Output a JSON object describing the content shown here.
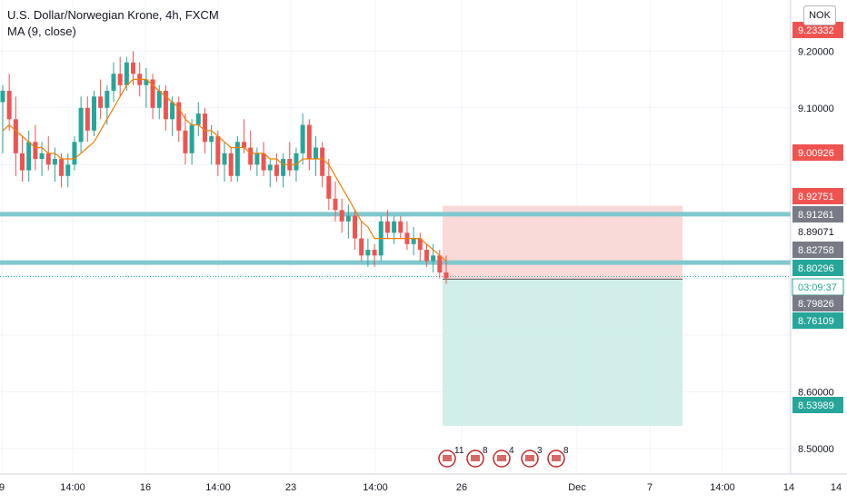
{
  "header": {
    "title": "U.S. Dollar/Norwegian Krone, 4h, FXCM",
    "indicator": "MA (9, close)",
    "currency_button": "NOK"
  },
  "colors": {
    "up": "#26a69a",
    "down": "#ef5350",
    "ma": "#f57c00",
    "grid": "#f0f3fa",
    "hline": "#7fc8ce",
    "stop_zone": "#f9d3d2",
    "target_zone": "#c9ebe8",
    "label_red": "#ef5350",
    "label_green": "#26a69a",
    "label_gray": "#787b86",
    "label_teal_light": "#7fc8ce",
    "axis_text": "#131722"
  },
  "chart_data": {
    "type": "candlestick",
    "symbol": "USDNOK",
    "timeframe": "4h",
    "source": "FXCM",
    "x_ticks": [
      "9",
      "14:00",
      "16",
      "14:00",
      "23",
      "14:00",
      "26",
      "Dec",
      "7",
      "14:00",
      "14",
      "14"
    ],
    "y_ticks": [
      9.2,
      9.1,
      8.6,
      8.5
    ],
    "y_tick_labels": [
      "9.20000",
      "9.10000",
      "8.60000",
      "8.50000"
    ],
    "ylim": [
      8.455,
      9.29
    ],
    "price_labels": [
      {
        "text": "9.23332",
        "value": 9.23332,
        "style": "red"
      },
      {
        "text": "9.00926",
        "value": 9.00926,
        "style": "red"
      },
      {
        "text": "8.92751",
        "value": 8.92751,
        "style": "red"
      },
      {
        "text": "8.91261",
        "value": 8.91261,
        "style": "gray"
      },
      {
        "text": "8.89071",
        "value": 8.89071,
        "style": "plain"
      },
      {
        "text": "8.82758",
        "value": 8.82758,
        "style": "gray"
      },
      {
        "text": "8.80296",
        "value": 8.80296,
        "style": "green"
      },
      {
        "text": "03:09:37",
        "value": 8.77,
        "style": "green-outline"
      },
      {
        "text": "8.79826",
        "value": 8.79826,
        "style": "gray"
      },
      {
        "text": "8.76109",
        "value": 8.76109,
        "style": "green"
      },
      {
        "text": "8.53989",
        "value": 8.53989,
        "style": "green"
      }
    ],
    "horizontal_lines": [
      8.91261,
      8.82758
    ],
    "last_price": 8.80296,
    "position": {
      "entry": 8.79826,
      "stop": 8.92751,
      "target": 8.53989
    },
    "events": [
      "11",
      "8",
      "4",
      "3",
      "8"
    ],
    "candles": [
      [
        9.11,
        9.14,
        9.02,
        9.13
      ],
      [
        9.13,
        9.16,
        9.06,
        9.08
      ],
      [
        9.08,
        9.12,
        8.98,
        9.02
      ],
      [
        9.02,
        9.05,
        8.97,
        8.99
      ],
      [
        8.99,
        9.06,
        8.97,
        9.04
      ],
      [
        9.04,
        9.07,
        8.99,
        9.01
      ],
      [
        9.01,
        9.04,
        8.98,
        9.02
      ],
      [
        9.02,
        9.05,
        8.99,
        9.0
      ],
      [
        9.0,
        9.03,
        8.97,
        9.01
      ],
      [
        9.01,
        9.02,
        8.96,
        8.98
      ],
      [
        8.98,
        9.02,
        8.96,
        9.0
      ],
      [
        9.0,
        9.05,
        8.99,
        9.04
      ],
      [
        9.04,
        9.12,
        9.02,
        9.1
      ],
      [
        9.1,
        9.12,
        9.04,
        9.06
      ],
      [
        9.06,
        9.13,
        9.05,
        9.12
      ],
      [
        9.12,
        9.15,
        9.08,
        9.1
      ],
      [
        9.1,
        9.14,
        9.07,
        9.13
      ],
      [
        9.13,
        9.18,
        9.11,
        9.16
      ],
      [
        9.16,
        9.19,
        9.12,
        9.14
      ],
      [
        9.14,
        9.19,
        9.13,
        9.18
      ],
      [
        9.18,
        9.2,
        9.14,
        9.16
      ],
      [
        9.16,
        9.18,
        9.12,
        9.14
      ],
      [
        9.14,
        9.17,
        9.1,
        9.15
      ],
      [
        9.15,
        9.16,
        9.08,
        9.1
      ],
      [
        9.1,
        9.14,
        9.08,
        9.13
      ],
      [
        9.13,
        9.14,
        9.06,
        9.08
      ],
      [
        9.08,
        9.12,
        9.05,
        9.11
      ],
      [
        9.11,
        9.12,
        9.04,
        9.06
      ],
      [
        9.06,
        9.09,
        9.0,
        9.02
      ],
      [
        9.02,
        9.08,
        9.0,
        9.07
      ],
      [
        9.07,
        9.11,
        9.05,
        9.09
      ],
      [
        9.09,
        9.1,
        9.02,
        9.04
      ],
      [
        9.04,
        9.07,
        9.0,
        9.05
      ],
      [
        9.05,
        9.06,
        8.98,
        9.0
      ],
      [
        9.0,
        9.04,
        8.97,
        9.02
      ],
      [
        9.02,
        9.03,
        8.97,
        8.98
      ],
      [
        8.98,
        9.05,
        8.97,
        9.04
      ],
      [
        9.04,
        9.08,
        9.02,
        9.03
      ],
      [
        9.03,
        9.06,
        8.99,
        9.0
      ],
      [
        9.0,
        9.03,
        8.98,
        9.02
      ],
      [
        9.02,
        9.04,
        8.98,
        8.99
      ],
      [
        8.99,
        9.01,
        8.96,
        9.0
      ],
      [
        9.0,
        9.02,
        8.97,
        8.98
      ],
      [
        8.98,
        9.02,
        8.96,
        9.01
      ],
      [
        9.01,
        9.04,
        8.98,
        8.99
      ],
      [
        8.99,
        9.03,
        8.97,
        9.02
      ],
      [
        9.02,
        9.09,
        9.0,
        9.07
      ],
      [
        9.07,
        9.08,
        8.99,
        9.01
      ],
      [
        9.01,
        9.05,
        8.98,
        9.03
      ],
      [
        9.03,
        9.04,
        8.96,
        8.98
      ],
      [
        8.98,
        9.01,
        8.92,
        8.94
      ],
      [
        8.94,
        8.97,
        8.9,
        8.92
      ],
      [
        8.92,
        8.94,
        8.88,
        8.9
      ],
      [
        8.9,
        8.93,
        8.87,
        8.91
      ],
      [
        8.91,
        8.92,
        8.85,
        8.87
      ],
      [
        8.87,
        8.9,
        8.83,
        8.84
      ],
      [
        8.84,
        8.87,
        8.82,
        8.85
      ],
      [
        8.85,
        8.86,
        8.82,
        8.84
      ],
      [
        8.84,
        8.91,
        8.83,
        8.9
      ],
      [
        8.9,
        8.92,
        8.87,
        8.88
      ],
      [
        8.88,
        8.91,
        8.86,
        8.9
      ],
      [
        8.9,
        8.91,
        8.87,
        8.88
      ],
      [
        8.88,
        8.9,
        8.85,
        8.86
      ],
      [
        8.86,
        8.89,
        8.84,
        8.87
      ],
      [
        8.87,
        8.88,
        8.83,
        8.85
      ],
      [
        8.85,
        8.86,
        8.82,
        8.83
      ],
      [
        8.83,
        8.86,
        8.81,
        8.84
      ],
      [
        8.84,
        8.85,
        8.8,
        8.81
      ],
      [
        8.81,
        8.84,
        8.79,
        8.8
      ]
    ],
    "ma": [
      9.06,
      9.07,
      9.06,
      9.05,
      9.04,
      9.03,
      9.03,
      9.02,
      9.02,
      9.01,
      9.01,
      9.01,
      9.02,
      9.03,
      9.04,
      9.06,
      9.08,
      9.1,
      9.12,
      9.14,
      9.15,
      9.15,
      9.15,
      9.14,
      9.13,
      9.12,
      9.11,
      9.1,
      9.08,
      9.07,
      9.07,
      9.06,
      9.06,
      9.05,
      9.04,
      9.03,
      9.03,
      9.03,
      9.02,
      9.02,
      9.02,
      9.01,
      9.01,
      9.0,
      9.0,
      9.0,
      9.01,
      9.01,
      9.01,
      9.01,
      9.0,
      8.98,
      8.96,
      8.94,
      8.92,
      8.9,
      8.89,
      8.87,
      8.87,
      8.87,
      8.87,
      8.87,
      8.87,
      8.87,
      8.87,
      8.86,
      8.85,
      8.84,
      8.83
    ]
  }
}
